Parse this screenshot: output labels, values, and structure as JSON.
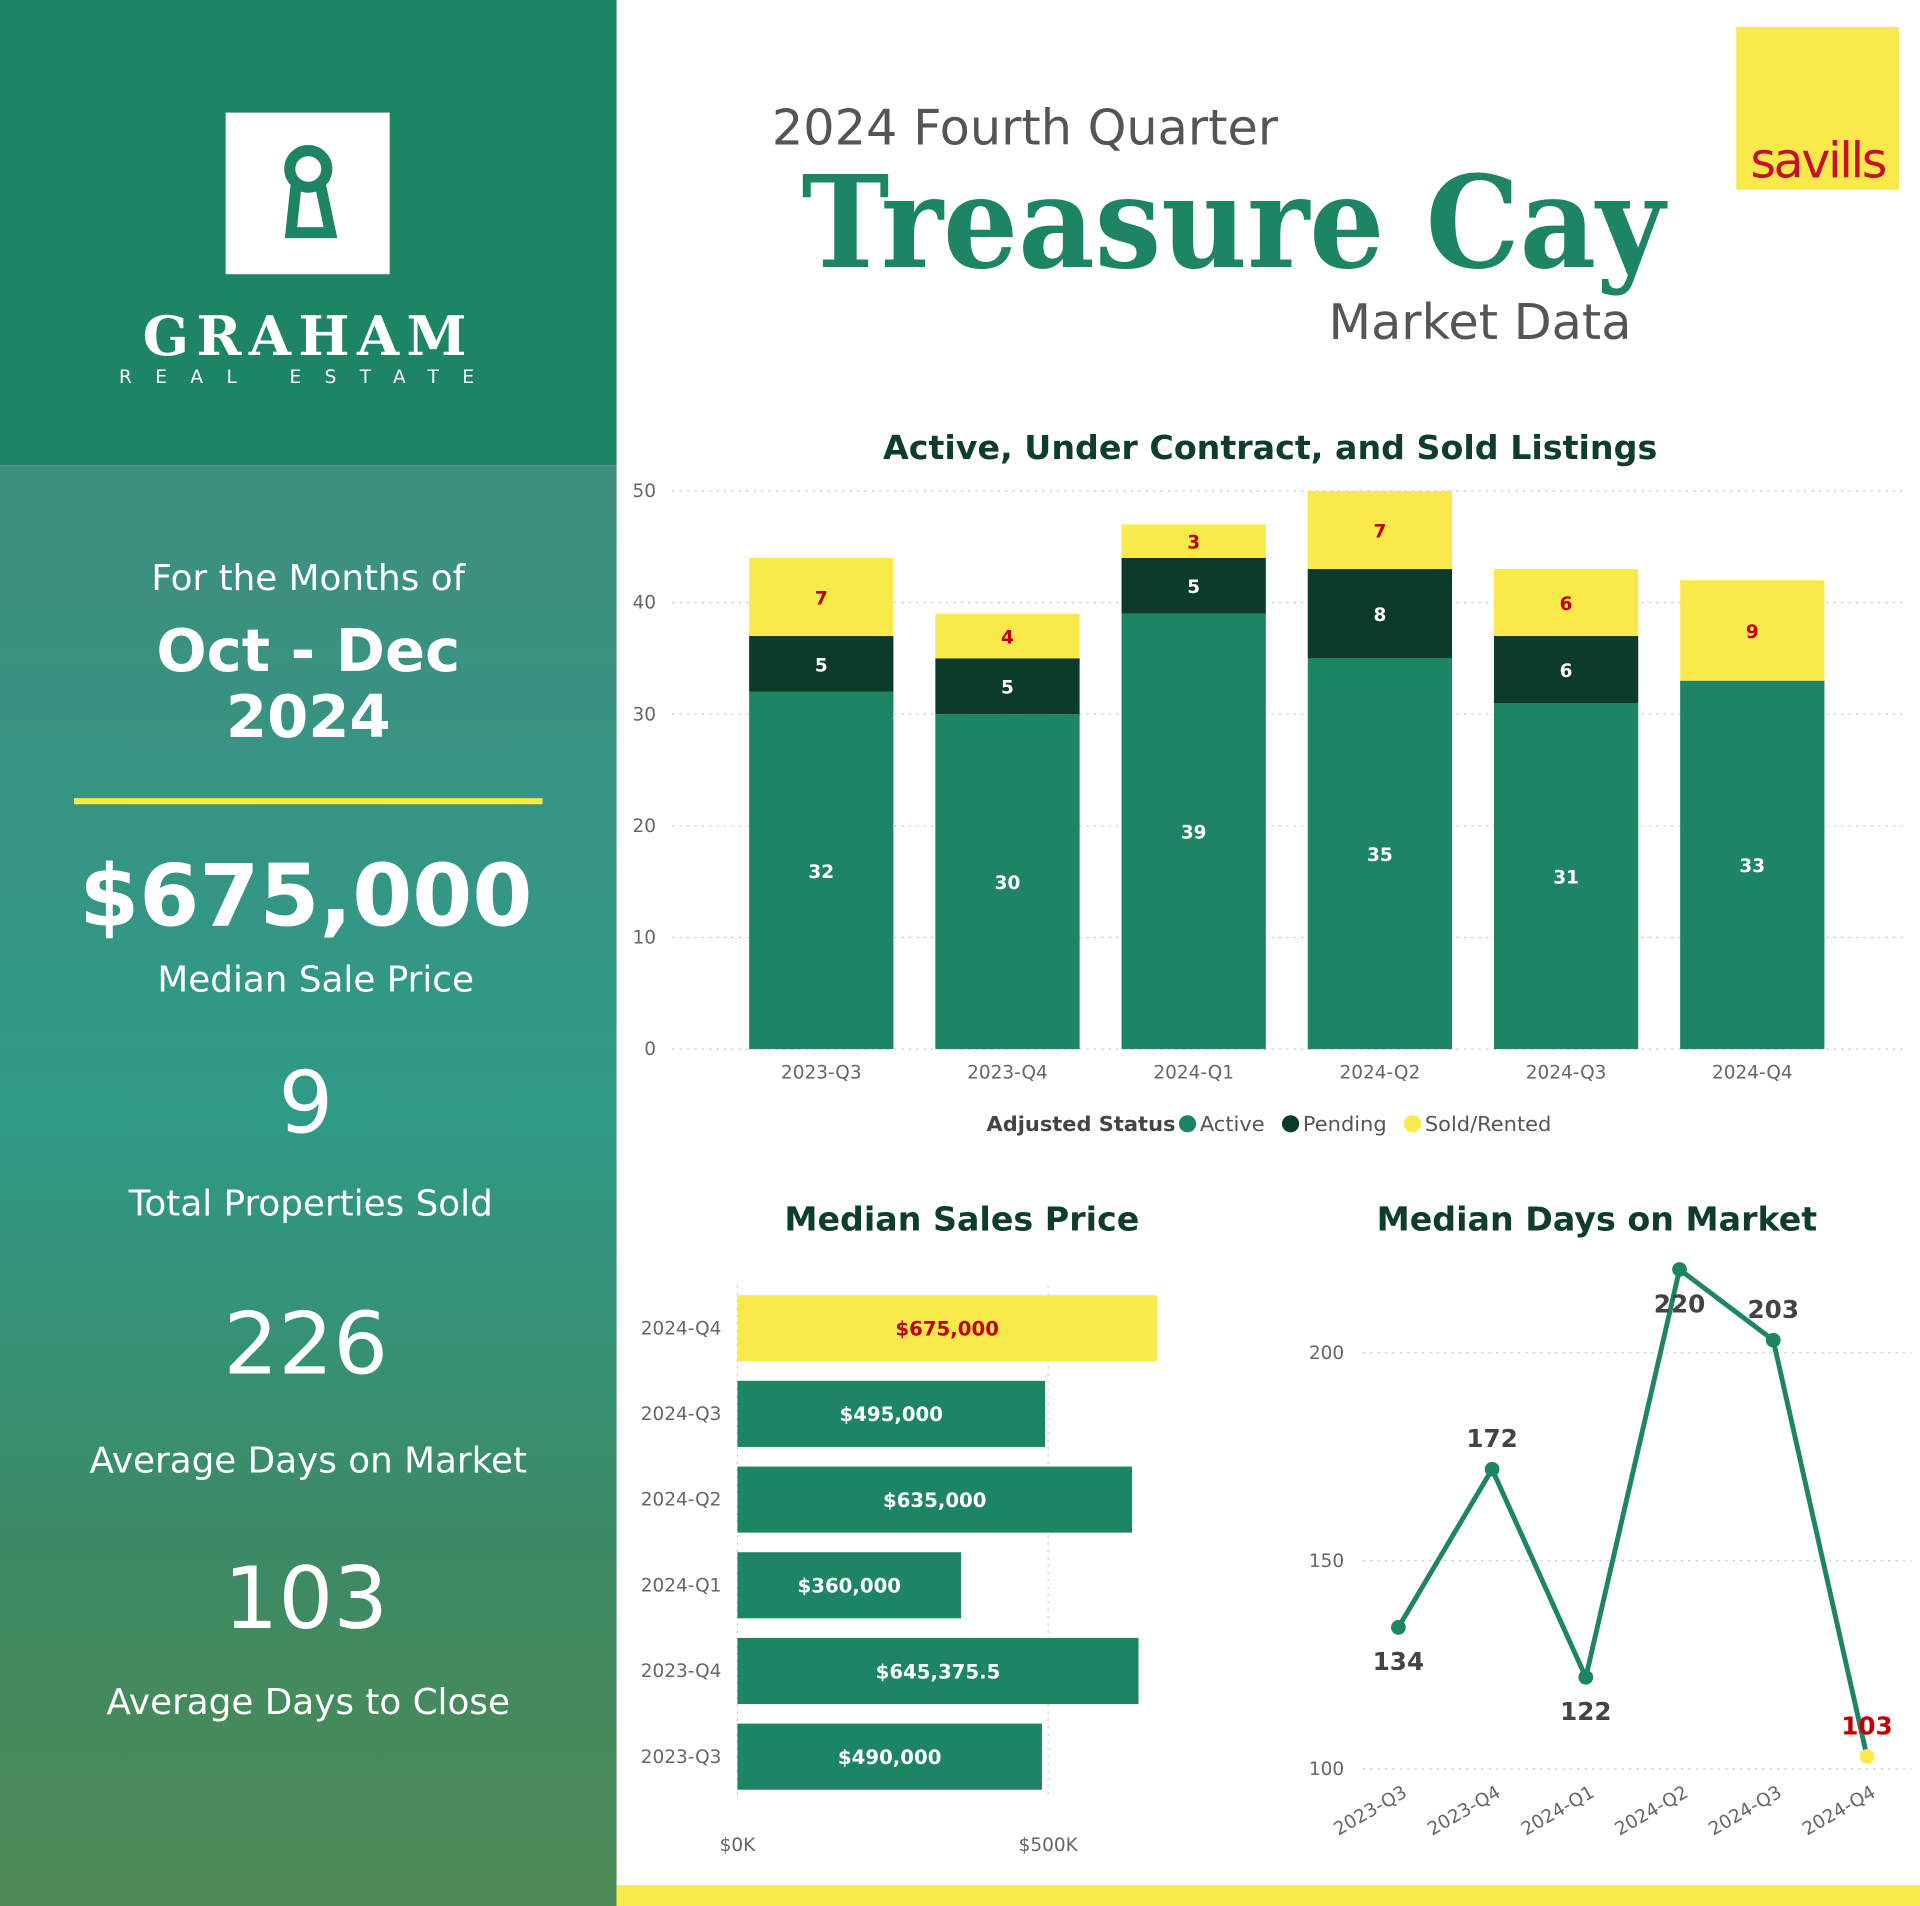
{
  "brand": {
    "name": "GRAHAM",
    "tagline": "REAL ESTATE",
    "partner": "savills"
  },
  "header": {
    "kicker": "2024 Fourth Quarter",
    "title": "Treasure Cay",
    "subtitle": "Market Data"
  },
  "sidebar": {
    "period_label": "For the Months of",
    "period": "Oct - Dec",
    "year": "2024",
    "stats": [
      {
        "value": "$675,000",
        "label": "Median Sale Price"
      },
      {
        "value": "9",
        "label": "Total Properties Sold"
      },
      {
        "value": "226",
        "label": "Average Days on Market"
      },
      {
        "value": "103",
        "label": "Average Days to Close"
      }
    ]
  },
  "chart_data": [
    {
      "type": "bar",
      "stacked": true,
      "title": "Active, Under Contract, and Sold Listings",
      "categories": [
        "2023-Q3",
        "2023-Q4",
        "2024-Q1",
        "2024-Q2",
        "2024-Q3",
        "2024-Q4"
      ],
      "series": [
        {
          "name": "Active",
          "color": "#1e8564",
          "label_color": "#ffffff",
          "values": [
            32,
            30,
            39,
            35,
            31,
            33
          ]
        },
        {
          "name": "Pending",
          "color": "#0d3b2a",
          "label_color": "#ffffff",
          "values": [
            5,
            5,
            5,
            8,
            6,
            null
          ]
        },
        {
          "name": "Sold/Rented",
          "color": "#f9e94a",
          "label_color": "#c00000",
          "values": [
            7,
            4,
            3,
            7,
            6,
            9
          ]
        }
      ],
      "ylim": [
        0,
        50
      ],
      "yticks": [
        0,
        10,
        20,
        30,
        40,
        50
      ],
      "grid": true,
      "legend_title": "Adjusted Status",
      "legend": "bottom"
    },
    {
      "type": "bar",
      "horizontal": true,
      "title": "Median Sales Price",
      "categories": [
        "2024-Q4",
        "2024-Q3",
        "2024-Q2",
        "2024-Q1",
        "2023-Q4",
        "2023-Q3"
      ],
      "values": [
        675000,
        495000,
        635000,
        360000,
        645375.5,
        490000
      ],
      "value_labels": [
        "$675,000",
        "$495,000",
        "$635,000",
        "$360,000",
        "$645,375.5",
        "$490,000"
      ],
      "colors": [
        "#f9e94a",
        "#1e8564",
        "#1e8564",
        "#1e8564",
        "#1e8564",
        "#1e8564"
      ],
      "label_colors": [
        "#c00000",
        "#ffffff",
        "#ffffff",
        "#ffffff",
        "#ffffff",
        "#ffffff"
      ],
      "xlim": [
        0,
        800000
      ],
      "xticks": [
        {
          "value": 0,
          "label": "$0K"
        },
        {
          "value": 500000,
          "label": "$500K"
        }
      ],
      "grid": true
    },
    {
      "type": "line",
      "title": "Median Days on Market",
      "categories": [
        "2023-Q3",
        "2023-Q4",
        "2024-Q1",
        "2024-Q2",
        "2024-Q3",
        "2024-Q4"
      ],
      "values": [
        134,
        172,
        122,
        220,
        203,
        103
      ],
      "color": "#1e8564",
      "point_colors": [
        "#1e8564",
        "#1e8564",
        "#1e8564",
        "#1e8564",
        "#1e8564",
        "#f9e94a"
      ],
      "label_colors": [
        "#444444",
        "#444444",
        "#444444",
        "#444444",
        "#444444",
        "#c00000"
      ],
      "ylim": [
        100,
        220
      ],
      "yticks": [
        100,
        150,
        200
      ],
      "grid": true
    }
  ]
}
